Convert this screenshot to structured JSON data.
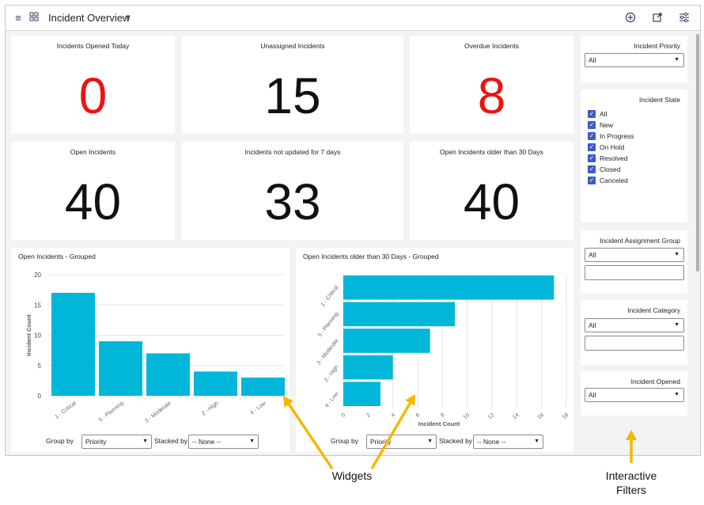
{
  "header": {
    "title": "Incident Overview",
    "icons": [
      "menu-icon",
      "grid-icon",
      "add-circle-icon",
      "share-icon",
      "filter-settings-icon"
    ]
  },
  "widgets": {
    "opened_today": {
      "title": "Incidents Opened Today",
      "value": "0",
      "color": "#ee1111"
    },
    "unassigned": {
      "title": "Unassigned Incidents",
      "value": "15",
      "color": "#111111"
    },
    "overdue": {
      "title": "Overdue Incidents",
      "value": "8",
      "color": "#ee1111"
    },
    "open": {
      "title": "Open Incidents",
      "value": "40",
      "color": "#111111"
    },
    "not_updated": {
      "title": "Incidents not updated for 7 days",
      "value": "33",
      "color": "#111111"
    },
    "older30": {
      "title": "Open Incidents older than 30 Days",
      "value": "40",
      "color": "#111111"
    }
  },
  "chart_data": [
    {
      "type": "bar",
      "title": "Open Incidents - Grouped",
      "categories": [
        "1 - Critical",
        "5 - Planning",
        "3 - Moderate",
        "2 - High",
        "4 - Low"
      ],
      "values": [
        17,
        9,
        7,
        4,
        3
      ],
      "ylabel": "Incident Count",
      "xlabel": "",
      "ylim": [
        0,
        20
      ],
      "yticks": [
        "0",
        "5",
        "10",
        "15",
        "20"
      ],
      "color": "#00b7d9",
      "group_by_label": "Group by",
      "group_by_value": "Priority",
      "stacked_by_label": "Stacked by",
      "stacked_by_value": "-- None --"
    },
    {
      "type": "bar",
      "orientation": "horizontal",
      "title": "Open Incidents older than 30 Days - Grouped",
      "categories": [
        "1 - Critical",
        "5 - Planning",
        "3 - Moderate",
        "2 - High",
        "4 - Low"
      ],
      "values": [
        17,
        9,
        7,
        4,
        3
      ],
      "xlabel": "Incident Count",
      "ylabel": "",
      "xlim": [
        0,
        18
      ],
      "xticks": [
        "0",
        "2",
        "4",
        "6",
        "8",
        "10",
        "12",
        "14",
        "16",
        "18"
      ],
      "color": "#00b7d9",
      "group_by_label": "Group by",
      "group_by_value": "Priority",
      "stacked_by_label": "Stacked by",
      "stacked_by_value": "-- None --"
    }
  ],
  "filters": {
    "priority": {
      "title": "Incident Priority",
      "value": "All"
    },
    "state": {
      "title": "Incident State",
      "options": [
        "All",
        "New",
        "In Progress",
        "On Hold",
        "Resolved",
        "Closed",
        "Canceled"
      ]
    },
    "assignment_group": {
      "title": "Incident Assignment Group",
      "value": "All"
    },
    "category": {
      "title": "Incident Category",
      "value": "All"
    },
    "opened": {
      "title": "Incident Opened",
      "value": "All"
    }
  },
  "annotations": {
    "widgets": "Widgets",
    "filters_line1": "Interactive",
    "filters_line2": "Filters",
    "arrow_color": "#f5b800"
  }
}
